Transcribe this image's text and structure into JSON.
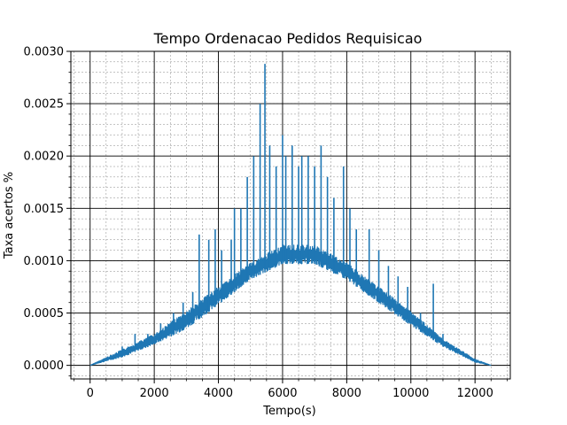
{
  "chart_data": {
    "type": "line",
    "title": "Tempo Ordenacao Pedidos Requisicao",
    "xlabel": "Tempo(s)",
    "ylabel": "Taxa acertos %",
    "xlim": [
      -600,
      13100
    ],
    "ylim": [
      -0.00013,
      0.003
    ],
    "x_ticks": [
      0,
      2000,
      4000,
      6000,
      8000,
      10000,
      12000
    ],
    "x_tick_labels": [
      "0",
      "2000",
      "4000",
      "6000",
      "8000",
      "10000",
      "12000"
    ],
    "y_ticks": [
      0.0,
      0.0005,
      0.001,
      0.0015,
      0.002,
      0.0025,
      0.003
    ],
    "y_tick_labels": [
      "0.0000",
      "0.0005",
      "0.0010",
      "0.0015",
      "0.0020",
      "0.0025",
      "0.0030"
    ],
    "grid": {
      "major": true,
      "minor": true
    },
    "series": [
      {
        "color": "#1f77b4",
        "x_range": [
          0,
          12500
        ],
        "lower_envelope": {
          "x": [
            0,
            1000,
            2000,
            3000,
            4000,
            5000,
            6000,
            7000,
            8000,
            9000,
            10000,
            11000,
            12000,
            12500
          ],
          "y": [
            0.0,
            8e-05,
            0.0002,
            0.00035,
            0.00058,
            0.00082,
            0.00097,
            0.00097,
            0.00082,
            0.0006,
            0.00038,
            0.00018,
            3e-05,
            0.0
          ]
        },
        "upper_envelope": {
          "x": [
            0,
            1000,
            2000,
            3000,
            4000,
            5000,
            6000,
            7000,
            8000,
            9000,
            10000,
            11000,
            12000,
            12500
          ],
          "y": [
            0.0,
            0.00015,
            0.0003,
            0.00052,
            0.00075,
            0.00098,
            0.00115,
            0.00115,
            0.00098,
            0.00075,
            0.00052,
            0.00025,
            6e-05,
            0.0
          ]
        },
        "spikes": [
          {
            "x": 1000,
            "y": 0.00018
          },
          {
            "x": 1400,
            "y": 0.0003
          },
          {
            "x": 1800,
            "y": 0.0003
          },
          {
            "x": 2200,
            "y": 0.0004
          },
          {
            "x": 2600,
            "y": 0.0005
          },
          {
            "x": 2900,
            "y": 0.0006
          },
          {
            "x": 3200,
            "y": 0.0007
          },
          {
            "x": 3400,
            "y": 0.00125
          },
          {
            "x": 3700,
            "y": 0.0012
          },
          {
            "x": 3900,
            "y": 0.0013
          },
          {
            "x": 4100,
            "y": 0.0011
          },
          {
            "x": 4400,
            "y": 0.0012
          },
          {
            "x": 4500,
            "y": 0.0015
          },
          {
            "x": 4700,
            "y": 0.0015
          },
          {
            "x": 4900,
            "y": 0.0018
          },
          {
            "x": 5100,
            "y": 0.002
          },
          {
            "x": 5300,
            "y": 0.0025
          },
          {
            "x": 5450,
            "y": 0.00288
          },
          {
            "x": 5600,
            "y": 0.0021
          },
          {
            "x": 5800,
            "y": 0.0019
          },
          {
            "x": 6000,
            "y": 0.0022
          },
          {
            "x": 6100,
            "y": 0.002
          },
          {
            "x": 6300,
            "y": 0.0021
          },
          {
            "x": 6500,
            "y": 0.0019
          },
          {
            "x": 6600,
            "y": 0.002
          },
          {
            "x": 6800,
            "y": 0.002
          },
          {
            "x": 7000,
            "y": 0.0019
          },
          {
            "x": 7200,
            "y": 0.0021
          },
          {
            "x": 7400,
            "y": 0.0018
          },
          {
            "x": 7600,
            "y": 0.0016
          },
          {
            "x": 7900,
            "y": 0.0019
          },
          {
            "x": 8100,
            "y": 0.0015
          },
          {
            "x": 8300,
            "y": 0.0013
          },
          {
            "x": 8700,
            "y": 0.0013
          },
          {
            "x": 9000,
            "y": 0.0011
          },
          {
            "x": 9300,
            "y": 0.00095
          },
          {
            "x": 9600,
            "y": 0.00085
          },
          {
            "x": 9900,
            "y": 0.00075
          },
          {
            "x": 10300,
            "y": 0.0005
          },
          {
            "x": 10700,
            "y": 0.00078
          },
          {
            "x": 11000,
            "y": 0.0003
          },
          {
            "x": 11400,
            "y": 0.00015
          },
          {
            "x": 11800,
            "y": 0.0001
          }
        ]
      }
    ]
  }
}
